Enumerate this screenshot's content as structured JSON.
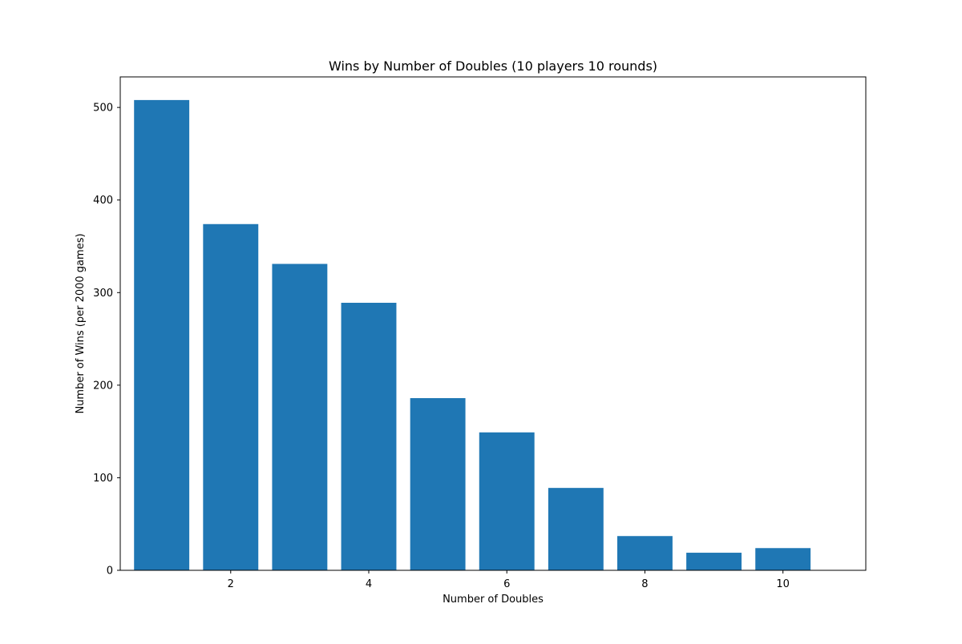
{
  "chart_data": {
    "type": "bar",
    "title": "Wins by Number of Doubles (10 players 10 rounds)",
    "xlabel": "Number of Doubles",
    "ylabel": "Number of Wins (per 2000 games)",
    "categories": [
      1,
      2,
      3,
      4,
      5,
      6,
      7,
      8,
      9,
      10
    ],
    "values": [
      508,
      374,
      331,
      289,
      186,
      149,
      89,
      37,
      19,
      24
    ],
    "xlim": [
      0.4,
      11.2
    ],
    "ylim": [
      0,
      533
    ],
    "x_ticks": [
      2,
      4,
      6,
      8,
      10
    ],
    "y_ticks": [
      0,
      100,
      200,
      300,
      400,
      500
    ],
    "bar_color": "#1f77b4",
    "grid": false
  }
}
